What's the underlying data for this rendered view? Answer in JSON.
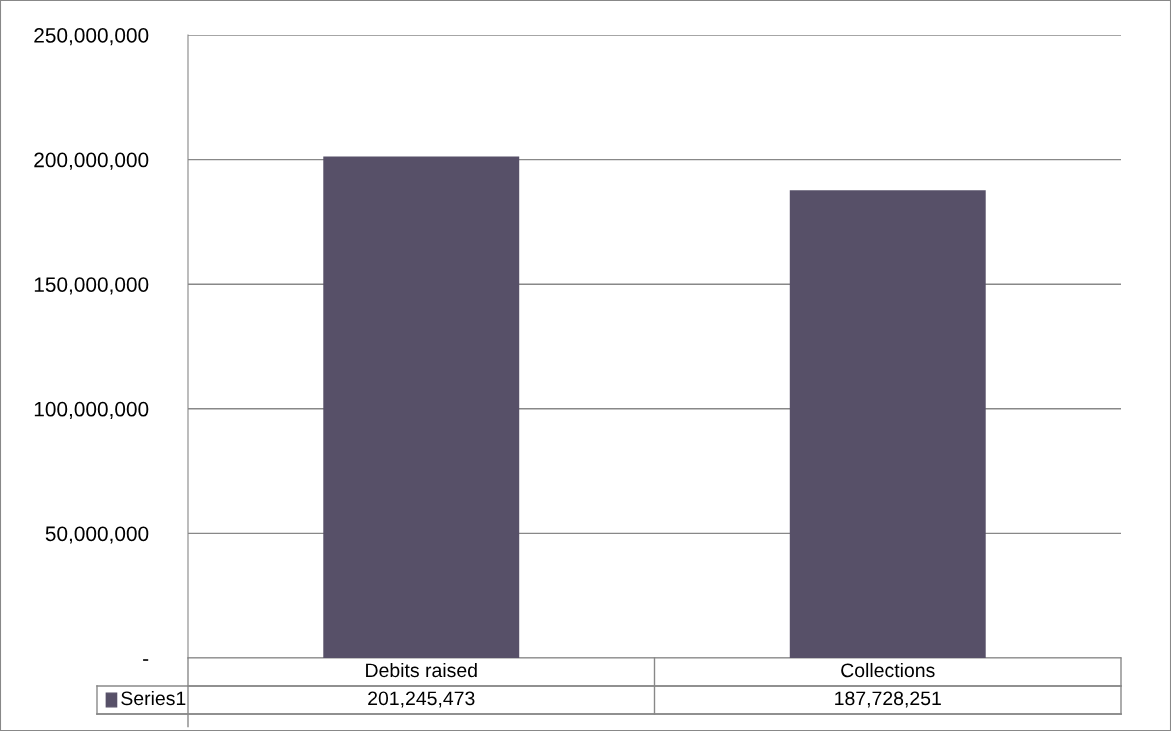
{
  "chart_data": {
    "type": "bar",
    "categories": [
      "Debits raised",
      "Collections"
    ],
    "series": [
      {
        "name": "Series1",
        "color": "#575068",
        "values": [
          201245473,
          187728251
        ],
        "value_labels": [
          "201,245,473",
          "187,728,251"
        ]
      }
    ],
    "ylim": [
      0,
      250000000
    ],
    "yticks": [
      {
        "value": 0,
        "label": "-"
      },
      {
        "value": 50000000,
        "label": "50,000,000"
      },
      {
        "value": 100000000,
        "label": "100,000,000"
      },
      {
        "value": 150000000,
        "label": "150,000,000"
      },
      {
        "value": 200000000,
        "label": "200,000,000"
      },
      {
        "value": 250000000,
        "label": "250,000,000"
      }
    ],
    "grid": "y"
  }
}
